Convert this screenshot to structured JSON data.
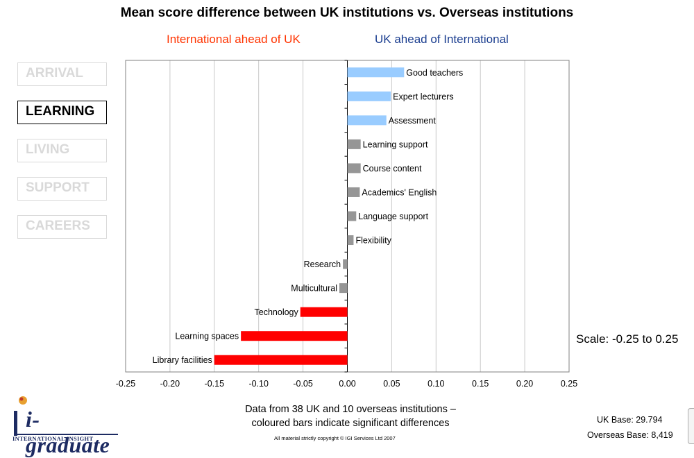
{
  "title": "Mean score difference between UK institutions vs. Overseas institutions",
  "legend": {
    "left_label": "International ahead of UK",
    "left_color": "#ff3300",
    "right_label": "UK ahead of International",
    "right_color": "#1a3d8f"
  },
  "nav": {
    "items": [
      {
        "label": "ARRIVAL",
        "active": false
      },
      {
        "label": "LEARNING",
        "active": true
      },
      {
        "label": "LIVING",
        "active": false
      },
      {
        "label": "SUPPORT",
        "active": false
      },
      {
        "label": "CAREERS",
        "active": false
      }
    ]
  },
  "chart_data": {
    "type": "bar",
    "orientation": "horizontal",
    "categories": [
      "Good teachers",
      "Expert lecturers",
      "Assessment",
      "Learning support",
      "Course content",
      "Academics' English",
      "Language support",
      "Flexibility",
      "Research",
      "Multicultural",
      "Technology",
      "Learning spaces",
      "Library facilities"
    ],
    "values": [
      0.064,
      0.049,
      0.044,
      0.015,
      0.015,
      0.014,
      0.01,
      0.007,
      -0.005,
      -0.009,
      -0.053,
      -0.12,
      -0.15
    ],
    "bar_colors": [
      "#99ccff",
      "#99ccff",
      "#99ccff",
      "#969696",
      "#969696",
      "#969696",
      "#969696",
      "#969696",
      "#969696",
      "#969696",
      "#ff0000",
      "#ff0000",
      "#ff0000"
    ],
    "xlim": [
      -0.25,
      0.25
    ],
    "xticks": [
      "-0.25",
      "-0.20",
      "-0.15",
      "-0.10",
      "-0.05",
      "0.00",
      "0.05",
      "0.10",
      "0.15",
      "0.20",
      "0.25"
    ],
    "grid": true
  },
  "scale_note": "Scale: -0.25 to 0.25",
  "footnote_line1": "Data from 38 UK and 10 overseas institutions –",
  "footnote_line2": "coloured bars indicate significant differences",
  "copyright": "All material strictly copyright © IGI Services Ltd 2007",
  "uk_base": "UK Base: 29.794",
  "overseas_base": "Overseas Base: 8,419",
  "logo": {
    "name": "i-graduate",
    "sub": "INTERNATIONAL INSIGHT"
  }
}
